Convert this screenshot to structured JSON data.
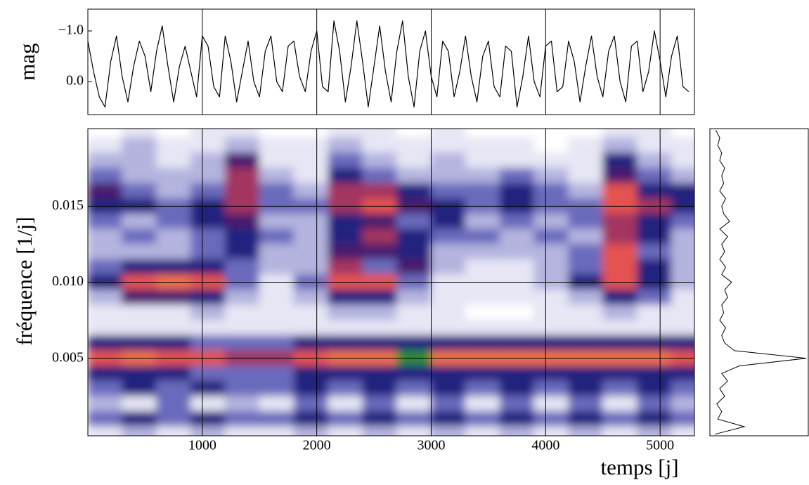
{
  "chart_data": [
    {
      "type": "line",
      "ylabel": "mag",
      "color": "#000000",
      "x": [
        0,
        50,
        100,
        150,
        200,
        250,
        300,
        350,
        400,
        450,
        500,
        550,
        600,
        650,
        700,
        750,
        800,
        850,
        900,
        950,
        1000,
        1050,
        1100,
        1150,
        1200,
        1250,
        1300,
        1350,
        1400,
        1450,
        1500,
        1550,
        1600,
        1650,
        1700,
        1750,
        1800,
        1850,
        1900,
        1950,
        2000,
        2050,
        2100,
        2150,
        2200,
        2250,
        2300,
        2350,
        2400,
        2450,
        2500,
        2550,
        2600,
        2650,
        2700,
        2750,
        2800,
        2850,
        2900,
        2950,
        3000,
        3050,
        3100,
        3150,
        3200,
        3250,
        3300,
        3350,
        3400,
        3450,
        3500,
        3550,
        3600,
        3650,
        3700,
        3750,
        3800,
        3850,
        3900,
        3950,
        4000,
        4050,
        4100,
        4150,
        4200,
        4250,
        4300,
        4350,
        4400,
        4450,
        4500,
        4550,
        4600,
        4650,
        4700,
        4750,
        4800,
        4850,
        4900,
        4950,
        5000,
        5050,
        5100,
        5150,
        5200,
        5250
      ],
      "values": [
        -0.8,
        -0.2,
        0.3,
        0.5,
        -0.4,
        -0.9,
        -0.1,
        0.4,
        -0.3,
        -0.8,
        -0.5,
        0.2,
        -0.6,
        -1.1,
        -0.3,
        0.4,
        -0.3,
        -0.7,
        -0.2,
        0.3,
        -0.9,
        -0.7,
        0.1,
        0.3,
        -0.9,
        -0.4,
        0.4,
        -0.2,
        -0.8,
        0.0,
        0.3,
        -0.6,
        -0.9,
        0.0,
        0.2,
        -0.7,
        -0.8,
        -0.1,
        0.2,
        -0.6,
        -1.0,
        0.1,
        0.2,
        -1.2,
        -0.6,
        0.4,
        -0.3,
        -1.2,
        -0.4,
        0.5,
        -0.3,
        -1.1,
        -0.2,
        0.4,
        -0.6,
        -1.2,
        -0.1,
        0.5,
        -0.6,
        -1.0,
        -0.1,
        0.3,
        -0.8,
        -0.6,
        0.3,
        -0.2,
        -0.9,
        -0.1,
        0.4,
        -0.5,
        -0.8,
        0.1,
        0.3,
        -0.7,
        -0.6,
        0.5,
        -0.1,
        -0.9,
        0.0,
        0.3,
        -0.7,
        -0.8,
        0.2,
        0.1,
        -0.8,
        -0.4,
        0.4,
        -0.3,
        -0.9,
        -0.1,
        0.3,
        -0.6,
        -0.9,
        0.0,
        0.4,
        -0.7,
        -0.8,
        0.2,
        -0.2,
        -1.0,
        -0.4,
        0.3,
        -0.5,
        -0.9,
        0.1,
        0.2
      ],
      "xlim": [
        0,
        5300
      ],
      "ylim": [
        0.65,
        -1.43
      ],
      "yticks": [
        {
          "value": -1.0,
          "label": "−1.0"
        },
        {
          "value": 0.0,
          "label": "0.0"
        }
      ]
    },
    {
      "type": "heatmap",
      "xlabel": "temps [j]",
      "ylabel": "fréquence [1/j]",
      "grid": true,
      "colors": [
        "#ffffff",
        "#e6e6f5",
        "#b4b4df",
        "#6a6abd",
        "#23237f",
        "#4a1f6e",
        "#a33560",
        "#e4524f",
        "#f0704a",
        "#2e8b2e"
      ],
      "x": [
        150,
        450,
        750,
        1050,
        1350,
        1650,
        1950,
        2250,
        2550,
        2850,
        3150,
        3450,
        3750,
        4050,
        4350,
        4650,
        4950,
        5250
      ],
      "y": [
        0.02,
        0.019,
        0.018,
        0.017,
        0.016,
        0.015,
        0.014,
        0.013,
        0.012,
        0.011,
        0.01,
        0.009,
        0.008,
        0.007,
        0.006,
        0.005,
        0.004,
        0.003,
        0.002,
        0.001,
        0.0
      ],
      "z": [
        [
          0,
          1,
          0,
          1,
          1,
          0,
          0,
          1,
          1,
          0,
          1,
          0,
          0,
          0,
          0,
          1,
          1,
          0
        ],
        [
          1,
          2,
          1,
          1,
          2,
          1,
          1,
          2,
          1,
          1,
          1,
          1,
          1,
          0,
          1,
          2,
          1,
          1
        ],
        [
          2,
          2,
          1,
          2,
          5,
          1,
          1,
          3,
          2,
          1,
          2,
          1,
          1,
          1,
          1,
          4,
          2,
          1
        ],
        [
          3,
          2,
          2,
          2,
          6,
          2,
          1,
          4,
          3,
          2,
          2,
          2,
          3,
          2,
          1,
          5,
          3,
          2
        ],
        [
          5,
          3,
          2,
          3,
          6,
          3,
          2,
          6,
          6,
          4,
          3,
          3,
          4,
          3,
          2,
          7,
          4,
          4
        ],
        [
          4,
          4,
          3,
          4,
          6,
          3,
          3,
          6,
          7,
          5,
          4,
          3,
          4,
          3,
          3,
          7,
          6,
          4
        ],
        [
          3,
          2,
          3,
          4,
          5,
          2,
          2,
          4,
          5,
          3,
          4,
          2,
          3,
          2,
          3,
          6,
          4,
          3
        ],
        [
          2,
          3,
          2,
          3,
          4,
          3,
          2,
          4,
          6,
          4,
          3,
          3,
          2,
          3,
          2,
          6,
          4,
          2
        ],
        [
          2,
          2,
          2,
          3,
          4,
          2,
          2,
          5,
          5,
          4,
          2,
          2,
          2,
          2,
          3,
          7,
          3,
          2
        ],
        [
          3,
          4,
          4,
          4,
          3,
          2,
          2,
          6,
          3,
          5,
          2,
          1,
          1,
          2,
          3,
          7,
          4,
          2
        ],
        [
          4,
          7,
          8,
          7,
          3,
          1,
          3,
          7,
          7,
          3,
          1,
          1,
          1,
          2,
          4,
          7,
          4,
          2
        ],
        [
          2,
          5,
          5,
          4,
          2,
          1,
          2,
          4,
          4,
          2,
          1,
          1,
          1,
          1,
          2,
          4,
          3,
          1
        ],
        [
          1,
          1,
          1,
          2,
          1,
          1,
          1,
          2,
          2,
          1,
          1,
          0,
          0,
          1,
          1,
          2,
          1,
          1
        ],
        [
          1,
          1,
          1,
          1,
          1,
          1,
          1,
          1,
          1,
          1,
          1,
          1,
          1,
          1,
          1,
          1,
          1,
          1
        ],
        [
          4,
          4,
          4,
          3,
          3,
          3,
          4,
          4,
          4,
          4,
          4,
          4,
          4,
          4,
          4,
          4,
          4,
          4
        ],
        [
          7,
          8,
          7,
          7,
          6,
          6,
          7,
          8,
          8,
          9,
          8,
          8,
          8,
          8,
          8,
          8,
          8,
          7
        ],
        [
          4,
          4,
          4,
          3,
          3,
          3,
          4,
          4,
          4,
          4,
          4,
          4,
          4,
          4,
          4,
          4,
          4,
          4
        ],
        [
          3,
          4,
          3,
          4,
          3,
          3,
          4,
          3,
          4,
          3,
          4,
          3,
          4,
          3,
          4,
          3,
          4,
          3
        ],
        [
          2,
          1,
          3,
          1,
          2,
          1,
          3,
          1,
          3,
          1,
          3,
          1,
          3,
          1,
          3,
          1,
          3,
          2
        ],
        [
          3,
          4,
          3,
          4,
          3,
          3,
          4,
          3,
          4,
          3,
          4,
          3,
          4,
          3,
          4,
          3,
          4,
          3
        ],
        [
          1,
          2,
          1,
          2,
          1,
          1,
          2,
          1,
          2,
          1,
          2,
          1,
          2,
          1,
          2,
          1,
          2,
          1
        ]
      ],
      "xlim": [
        0,
        5300
      ],
      "ylim": [
        -0.0001,
        0.0201
      ],
      "xticks": [
        1000,
        2000,
        3000,
        4000,
        5000
      ],
      "yticks": [
        0.005,
        {
          "value": 0.01,
          "label": "0.010"
        },
        0.015
      ]
    },
    {
      "type": "line",
      "orientation": "horizontal",
      "color": "#000000",
      "y": [
        0,
        0.0005,
        0.001,
        0.0015,
        0.002,
        0.0025,
        0.003,
        0.0035,
        0.004,
        0.0045,
        0.005,
        0.0055,
        0.006,
        0.0065,
        0.007,
        0.0075,
        0.008,
        0.0085,
        0.009,
        0.0095,
        0.01,
        0.0105,
        0.011,
        0.0115,
        0.012,
        0.0125,
        0.013,
        0.0135,
        0.014,
        0.0145,
        0.015,
        0.0155,
        0.016,
        0.0165,
        0.017,
        0.0175,
        0.018,
        0.0185,
        0.019,
        0.0195,
        0.02
      ],
      "values": [
        0.05,
        0.35,
        0.08,
        0.12,
        0.07,
        0.15,
        0.1,
        0.18,
        0.12,
        0.3,
        0.98,
        0.25,
        0.15,
        0.12,
        0.16,
        0.1,
        0.14,
        0.12,
        0.18,
        0.15,
        0.22,
        0.12,
        0.16,
        0.1,
        0.15,
        0.12,
        0.18,
        0.1,
        0.2,
        0.14,
        0.12,
        0.16,
        0.1,
        0.14,
        0.12,
        0.15,
        0.1,
        0.12,
        0.08,
        0.1,
        0.06
      ],
      "xlim": [
        0,
        1
      ],
      "ylim": [
        -0.0001,
        0.0201
      ]
    }
  ]
}
